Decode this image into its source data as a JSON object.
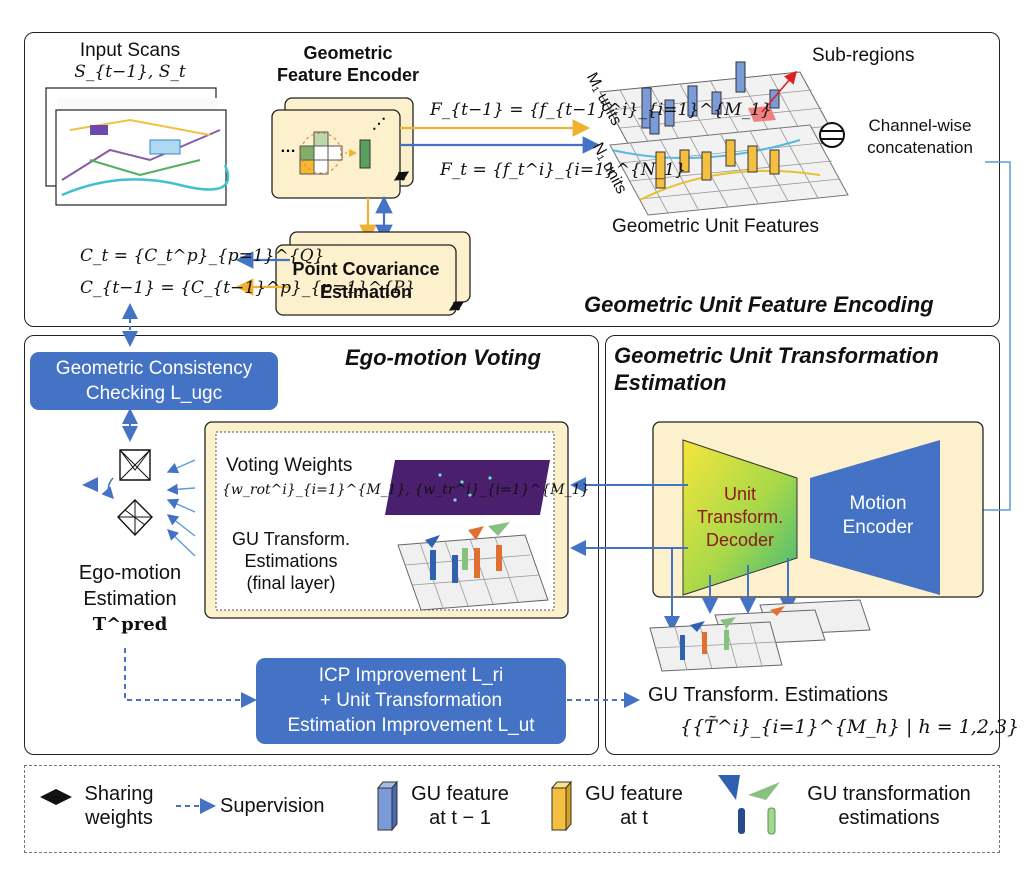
{
  "encoding": {
    "title": "Geometric Unit Feature Encoding",
    "input_scans_label": "Input Scans",
    "input_scans_math": "S_{t−1}, S_t",
    "encoder_label_line1": "Geometric",
    "encoder_label_line2": "Feature Encoder",
    "ft1_math": "F_{t−1} = {f_{t−1}^i}_{i=1}^{M_1}",
    "ft_math": "F_t = {f_t^i}_{i=1}^{N_1}",
    "subregions_label": "Sub-regions",
    "m1_units": "M₁ units",
    "n1_units": "N₁ units",
    "channelwise_line1": "Channel-wise",
    "channelwise_line2": "concatenation",
    "unit_features_label": "Geometric Unit Features",
    "ct_math": "C_t = {C_t^p}_{p=1}^{Q}",
    "ct1_math": "C_{t−1} = {C_{t−1}^p}_{p=1}^{P}",
    "covariance_line1": "Point Covariance",
    "covariance_line2": "Estimation"
  },
  "voting": {
    "title": "Ego-motion Voting",
    "consistency_line1": "Geometric Consistency",
    "consistency_line2": "Checking L_ugc",
    "voting_weights_label": "Voting Weights",
    "voting_weights_math": "{w_rot^i}_{i=1}^{M_1}, {w_tr^i}_{i=1}^{M_1}",
    "gu_est_line1": "GU Transform.",
    "gu_est_line2": "Estimations",
    "gu_est_line3": "(final layer)",
    "ego_line1": "Ego-motion",
    "ego_line2": "Estimation",
    "ego_math": "T^pred",
    "icp_line1": "ICP Improvement L_ri",
    "icp_line2": "+ Unit Transformation",
    "icp_line3": "Estimation Improvement L_ut"
  },
  "transform": {
    "title_line1": "Geometric Unit Transformation",
    "title_line2": "Estimation",
    "decoder_line1": "Unit",
    "decoder_line2": "Transform.",
    "decoder_line3": "Decoder",
    "encoder_line1": "Motion",
    "encoder_line2": "Encoder",
    "gu_est_label": "GU Transform. Estimations",
    "gu_est_math": "{{T̃^i}_{i=1}^{M_h} | h = 1,2,3}"
  },
  "legend": {
    "sharing_line1": "Sharing",
    "sharing_line2": "weights",
    "supervision": "Supervision",
    "gu_t1_line1": "GU feature",
    "gu_t1_line2": "at t − 1",
    "gu_t_line1": "GU feature",
    "gu_t_line2": "at t",
    "gu_trans_line1": "GU transformation",
    "gu_trans_line2": "estimations"
  },
  "colors": {
    "blue": "#4472c4",
    "orange": "#f5b82e",
    "cream": "#fdf0cc",
    "purple": "#4a1f6e"
  }
}
